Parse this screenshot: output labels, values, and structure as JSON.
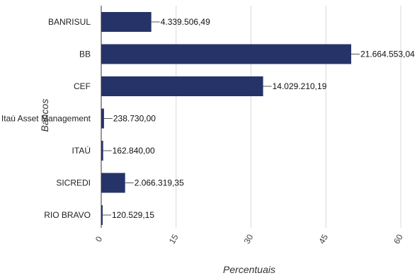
{
  "chart_data": {
    "type": "bar",
    "orientation": "horizontal",
    "categories": [
      "BANRISUL",
      "BB",
      "CEF",
      "Itaú Asset Management",
      "ITAÚ",
      "SICREDI",
      "RIO BRAVO"
    ],
    "values": [
      10.03,
      50.08,
      32.43,
      0.55,
      0.38,
      4.78,
      0.28
    ],
    "data_labels": [
      "4.339.506,49",
      "21.664.553,04",
      "14.029.210,19",
      "238.730,00",
      "162.840,00",
      "2.066.319,35",
      "120.529,15"
    ],
    "xlabel": "Percentuais",
    "ylabel": "Bancos",
    "xlim": [
      0,
      60
    ],
    "xticks": [
      0,
      15,
      30,
      45,
      60
    ],
    "x_tick_labels": [
      "0",
      "15",
      "30",
      "45",
      "60"
    ],
    "grid": "vertical",
    "bar_color": "#253368"
  }
}
